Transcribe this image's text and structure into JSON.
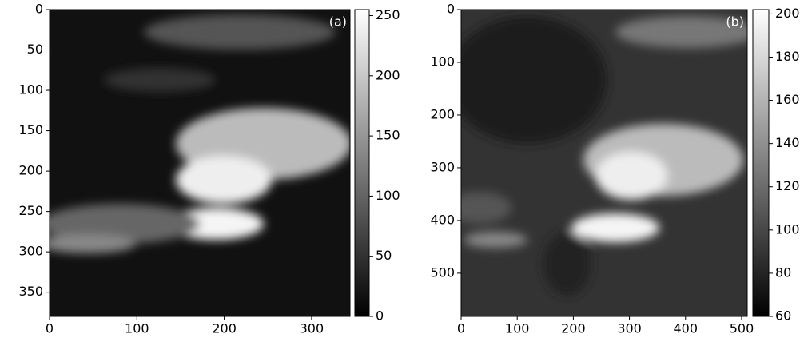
{
  "chart_data": [
    {
      "type": "image",
      "label": "(a)",
      "colormap": "gray",
      "invert_y": true,
      "xlim": [
        0,
        344
      ],
      "xticks": [
        0,
        100,
        200,
        300
      ],
      "ylim": [
        0,
        380
      ],
      "yticks": [
        0,
        50,
        100,
        150,
        200,
        250,
        300,
        350
      ],
      "clim": [
        0,
        255
      ],
      "cticks": [
        0,
        50,
        100,
        150,
        200,
        250
      ]
    },
    {
      "type": "image",
      "label": "(b)",
      "colormap": "gray",
      "invert_y": true,
      "xlim": [
        0,
        510
      ],
      "xticks": [
        0,
        100,
        200,
        300,
        400,
        500
      ],
      "ylim": [
        0,
        582
      ],
      "yticks": [
        0,
        100,
        200,
        300,
        400,
        500
      ],
      "clim": [
        60,
        202
      ],
      "cticks": [
        60,
        80,
        100,
        120,
        140,
        160,
        180,
        200
      ]
    }
  ]
}
